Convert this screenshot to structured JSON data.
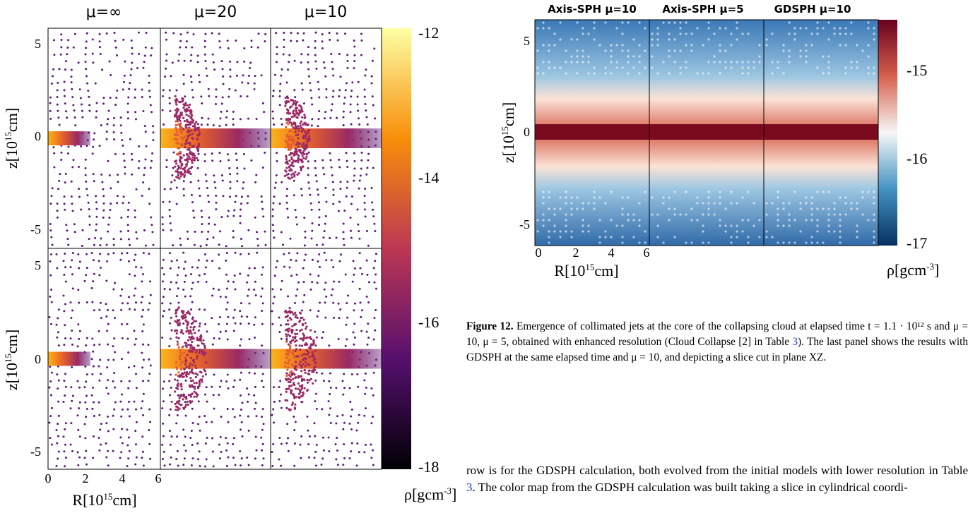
{
  "figure_left": {
    "panel_titles": [
      "μ=∞",
      "μ=20",
      "μ=10"
    ],
    "y_ticks": [
      "5",
      "0",
      "-5"
    ],
    "y_label": {
      "base": "z[10",
      "sup": "15",
      "tail": "cm]"
    },
    "x_ticks": [
      "0",
      "2",
      "4",
      "6"
    ],
    "x_label": {
      "base": "R[10",
      "sup": "15",
      "tail": "cm]"
    },
    "colorbar_ticks": [
      "-12",
      "-14",
      "-16",
      "-18"
    ],
    "colorbar_label": {
      "base": "ρ[gcm",
      "sup": "-3",
      "tail": "]"
    }
  },
  "figure_right": {
    "panel_titles": [
      "Axis-SPH μ=10",
      "Axis-SPH μ=5",
      "GDSPH  μ=10"
    ],
    "y_ticks": [
      "5",
      "0",
      "-5"
    ],
    "y_label": {
      "base": "z[10",
      "sup": "15",
      "tail": "cm]"
    },
    "x_ticks": [
      "0",
      "2",
      "4",
      "6"
    ],
    "x_label": {
      "base": "R[10",
      "sup": "15",
      "tail": "cm]"
    },
    "colorbar_ticks": [
      "-15",
      "-16",
      "-17"
    ],
    "colorbar_label": {
      "base": "ρ[gcm",
      "sup": "-3",
      "tail": "]"
    }
  },
  "caption": {
    "label": "Figure 12.",
    "parts": [
      " Emergence of collimated jets at the core of the collapsing cloud at elapsed time t = 1.1 · 10¹² s and μ = 10, μ = 5, obtained with enhanced resolution (Cloud Collapse [2] in Table ",
      "3",
      "). The last panel shows the results with GDSPH at the same elapsed time and μ = 10, and depicting a slice cut in plane XZ."
    ]
  },
  "body_text": {
    "parts": [
      "row is for the GDSPH calculation, both evolved from the initial models with lower resolution in Table ",
      "3",
      ". The color map from the GDSPH calculation was built taking a slice in cylindrical coordi-"
    ]
  }
}
